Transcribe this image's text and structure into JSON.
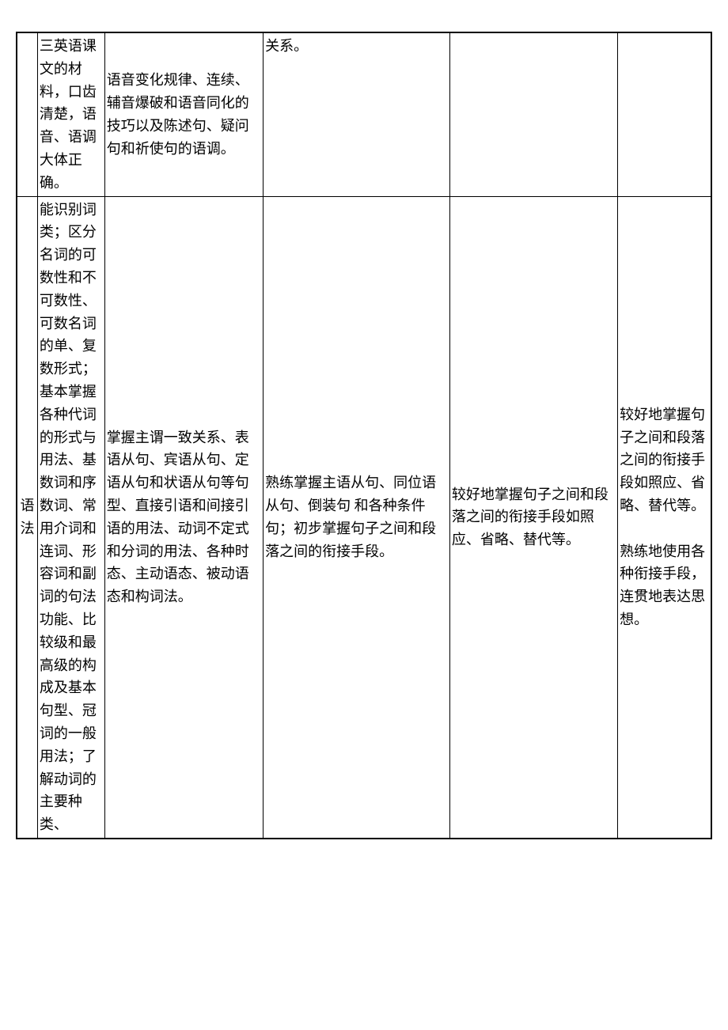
{
  "table": {
    "row1": {
      "label": "",
      "c1": "三英语课文的材料，口齿清楚，语音、语调大体正确。",
      "c2": "语音变化规律、连续、辅音爆破和语音同化的技巧以及陈述句、疑问句和祈使句的语调。",
      "c3": "关系。",
      "c4": "",
      "c5": ""
    },
    "row2": {
      "label": "语法",
      "c1": "能识别词类；区分名词的可数性和不可数性、可数名词的单、复数形式；基本掌握各种代词的形式与用法、基数词和序数词、常用介词和连词、形容词和副词的句法功能、比较级和最高级的构成及基本句型、冠词的一般用法；了解动词的主要种类、",
      "c2": "掌握主谓一致关系、表语从句、宾语从句、定语从句和状语从句等句型、直接引语和间接引语的用法、动词不定式和分词的用法、各种时态、主动语态、被动语态和构词法。",
      "c3": "熟练掌握主语从句、同位语从句、倒装句 和各种条件句；初步掌握句子之间和段落之间的衔接手段。",
      "c4": "较好地掌握句子之间和段落之间的衔接手段如照应、省略、替代等。",
      "c5": "较好地掌握句子之间和段落之间的衔接手段如照应、省略、替代等。\n\n熟练地使用各种衔接手段，连贯地表达思想。"
    }
  }
}
